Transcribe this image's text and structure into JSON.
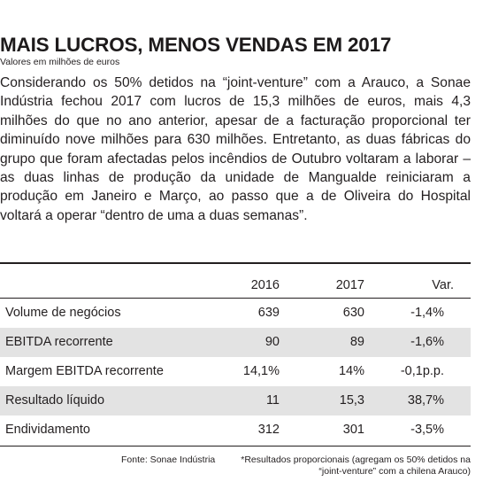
{
  "header": {
    "title": "MAIS LUCROS, MENOS VENDAS EM 2017",
    "subtitle": "Valores em milhões de euros"
  },
  "article": {
    "body": "Considerando os 50% detidos na “joint-venture” com a Arauco, a Sonae Indústria fechou 2017 com lucros de 15,3 milhões de euros, mais 4,3 milhões do que no ano anterior, apesar de a facturação proporcional ter diminuído nove milhões para 630 milhões. Entretanto, as duas fábricas do grupo que foram afectadas pelos incêndios de Outubro voltaram a laborar – as duas linhas de produção da unidade de Mangualde reiniciaram a produção em Janeiro e Março, ao passo que a de Oliveira do Hospital voltará a operar “dentro de uma a duas semanas”."
  },
  "table": {
    "columns": [
      "2016",
      "2017",
      "Var."
    ],
    "rows": [
      {
        "label": "Volume de negócios",
        "y2016": "639",
        "y2017": "630",
        "var": "-1,4%"
      },
      {
        "label": "EBITDA recorrente",
        "y2016": "90",
        "y2017": "89",
        "var": "-1,6%"
      },
      {
        "label": "Margem EBITDA recorrente",
        "y2016": "14,1%",
        "y2017": "14%",
        "var": "-0,1p.p."
      },
      {
        "label": "Resultado líquido",
        "y2016": "11",
        "y2017": "15,3",
        "var": "38,7%"
      },
      {
        "label": "Endividamento",
        "y2016": "312",
        "y2017": "301",
        "var": "-3,5%"
      }
    ]
  },
  "footer": {
    "source": "Fonte: Sonae Indústria",
    "note": "*Resultados proporcionais (agregam os 50% detidos na “joint-venture” com a chilena Arauco)"
  }
}
